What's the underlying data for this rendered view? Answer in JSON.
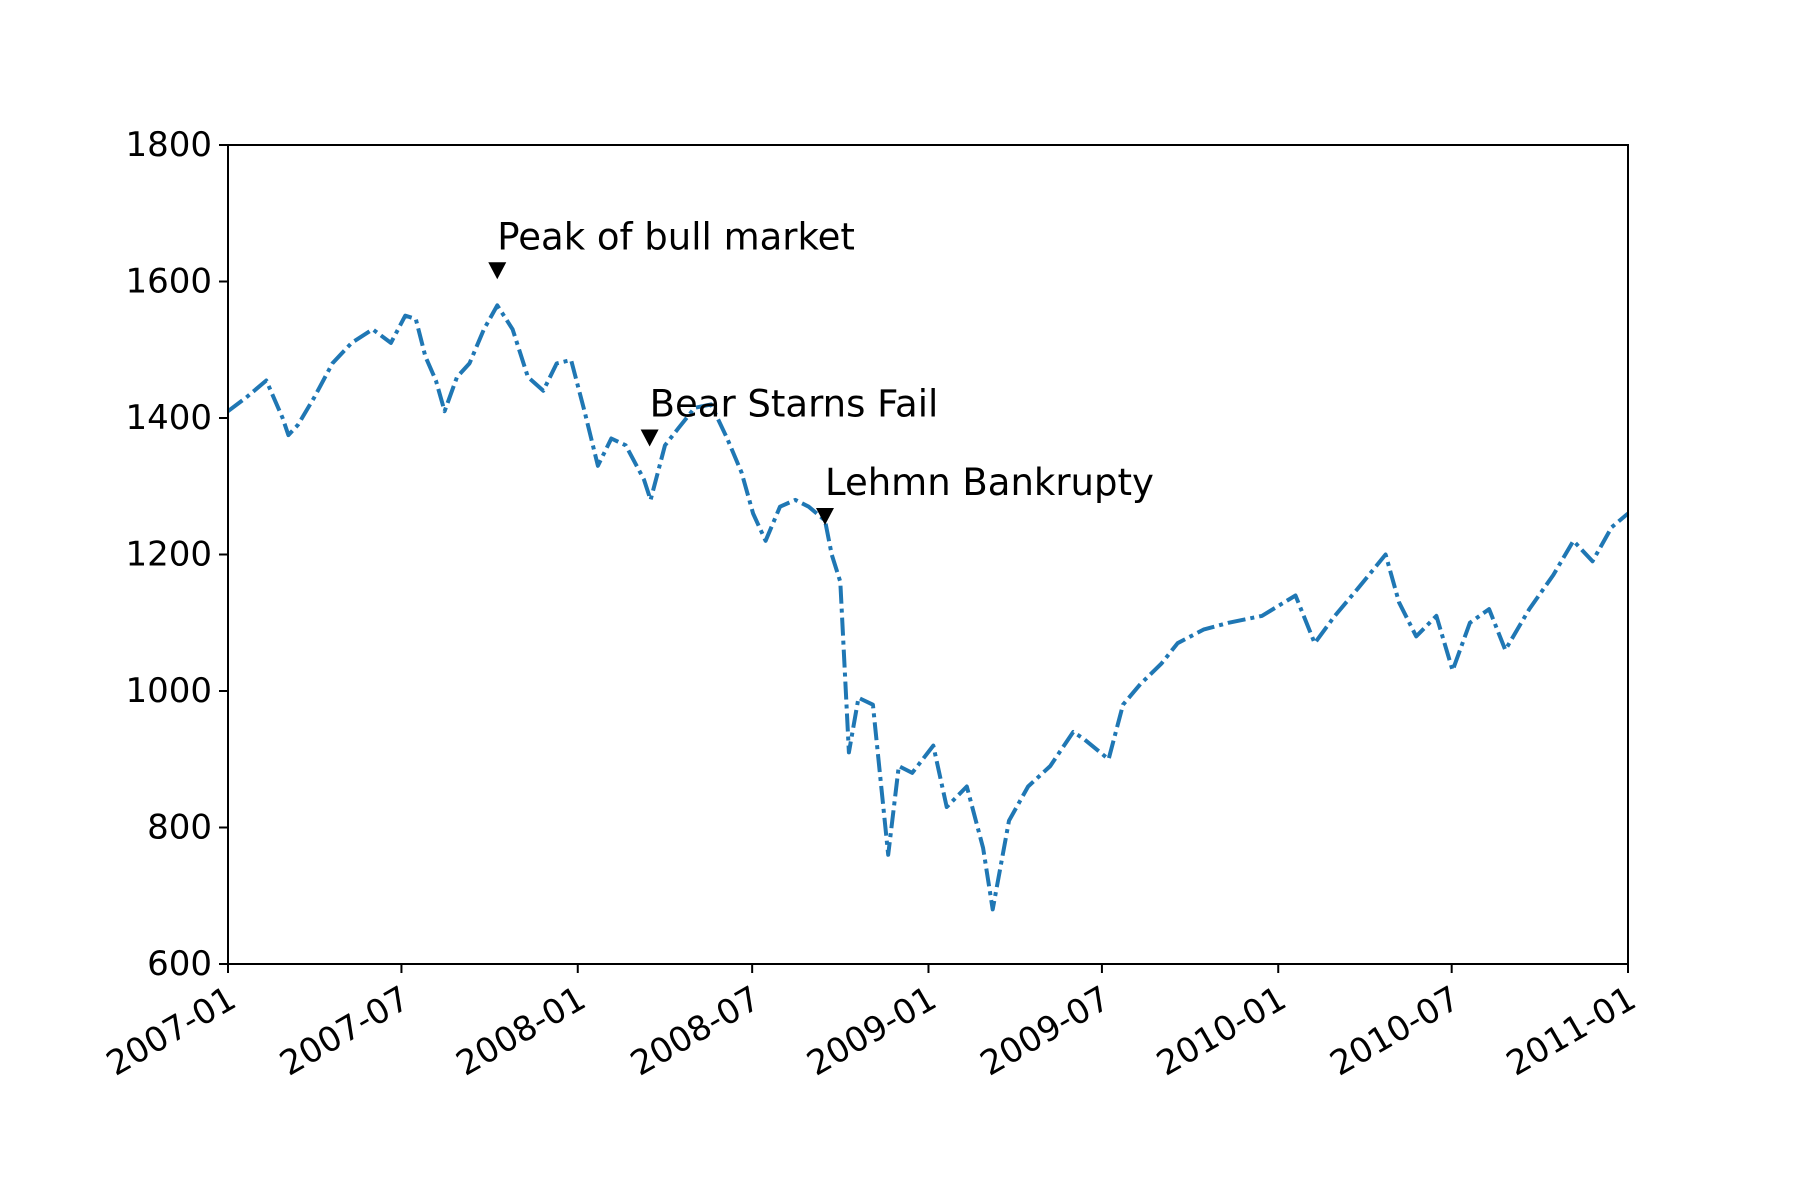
{
  "chart_data": {
    "type": "line",
    "title": "",
    "xlabel": "",
    "ylabel": "",
    "xlim": [
      "2007-01-01",
      "2011-01-01"
    ],
    "ylim": [
      600,
      1800
    ],
    "grid": false,
    "x_ticks": [
      "2007-01",
      "2007-07",
      "2008-01",
      "2008-07",
      "2009-01",
      "2009-07",
      "2010-01",
      "2010-07",
      "2011-01"
    ],
    "y_ticks": [
      "600",
      "800",
      "1000",
      "1200",
      "1400",
      "1600",
      "1800"
    ],
    "series": [
      {
        "line_style": "dash-dot",
        "color": "#1f77b4",
        "x": [
          "2007-01-01",
          "2007-01-20",
          "2007-02-10",
          "2007-02-27",
          "2007-03-05",
          "2007-03-15",
          "2007-04-01",
          "2007-04-20",
          "2007-05-10",
          "2007-06-01",
          "2007-06-20",
          "2007-07-05",
          "2007-07-16",
          "2007-07-26",
          "2007-08-06",
          "2007-08-15",
          "2007-08-28",
          "2007-09-10",
          "2007-09-25",
          "2007-10-09",
          "2007-10-25",
          "2007-11-10",
          "2007-11-26",
          "2007-12-10",
          "2007-12-25",
          "2008-01-08",
          "2008-01-22",
          "2008-02-05",
          "2008-02-20",
          "2008-03-10",
          "2008-03-17",
          "2008-04-01",
          "2008-04-15",
          "2008-05-02",
          "2008-05-19",
          "2008-06-05",
          "2008-06-20",
          "2008-07-02",
          "2008-07-15",
          "2008-07-30",
          "2008-08-15",
          "2008-08-29",
          "2008-09-15",
          "2008-09-22",
          "2008-10-01",
          "2008-10-10",
          "2008-10-20",
          "2008-11-04",
          "2008-11-20",
          "2008-12-01",
          "2008-12-15",
          "2009-01-06",
          "2009-01-20",
          "2009-02-10",
          "2009-02-27",
          "2009-03-09",
          "2009-03-26",
          "2009-04-15",
          "2009-05-08",
          "2009-06-01",
          "2009-06-12",
          "2009-07-08",
          "2009-07-23",
          "2009-08-10",
          "2009-09-01",
          "2009-09-18",
          "2009-10-15",
          "2009-11-10",
          "2009-12-15",
          "2010-01-19",
          "2010-02-08",
          "2010-03-01",
          "2010-03-25",
          "2010-04-23",
          "2010-05-07",
          "2010-05-25",
          "2010-06-15",
          "2010-07-02",
          "2010-07-20",
          "2010-08-09",
          "2010-08-26",
          "2010-09-20",
          "2010-10-15",
          "2010-11-05",
          "2010-11-25",
          "2010-12-15",
          "2011-01-01"
        ],
        "y": [
          1410,
          1430,
          1455,
          1400,
          1375,
          1390,
          1430,
          1480,
          1510,
          1530,
          1510,
          1550,
          1545,
          1490,
          1455,
          1410,
          1460,
          1480,
          1530,
          1565,
          1530,
          1460,
          1440,
          1480,
          1485,
          1410,
          1330,
          1370,
          1360,
          1310,
          1280,
          1360,
          1385,
          1415,
          1420,
          1370,
          1320,
          1260,
          1220,
          1270,
          1280,
          1270,
          1250,
          1200,
          1160,
          910,
          990,
          980,
          760,
          890,
          880,
          920,
          830,
          860,
          770,
          680,
          810,
          860,
          890,
          940,
          930,
          900,
          980,
          1010,
          1040,
          1070,
          1090,
          1100,
          1110,
          1140,
          1070,
          1110,
          1150,
          1200,
          1130,
          1080,
          1110,
          1030,
          1100,
          1120,
          1060,
          1120,
          1170,
          1220,
          1190,
          1240,
          1260
        ]
      }
    ],
    "annotations": [
      {
        "text": "Peak of bull market",
        "x": "2007-10-09",
        "y": 1615
      },
      {
        "text": "Bear Starns Fail",
        "x": "2008-03-16",
        "y": 1370
      },
      {
        "text": "Lehmn Bankrupty",
        "x": "2008-09-15",
        "y": 1255
      }
    ]
  }
}
